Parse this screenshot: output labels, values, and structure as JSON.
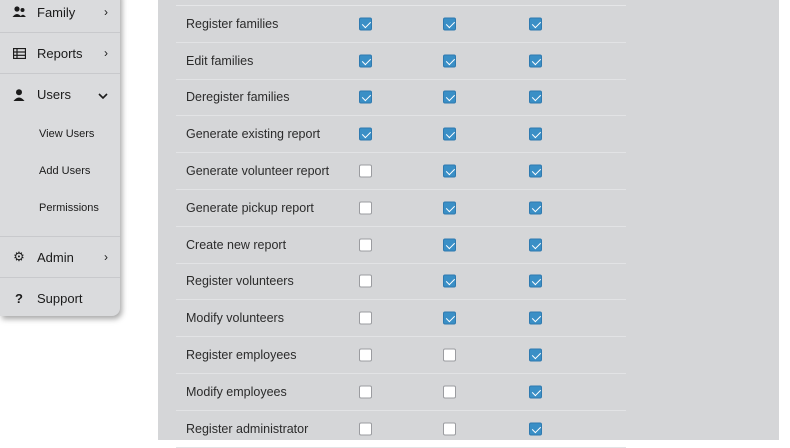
{
  "sidebar": {
    "items": [
      {
        "label": "Family",
        "icon": "family-icon",
        "chevron": "›"
      },
      {
        "label": "Reports",
        "icon": "reports-icon",
        "chevron": "›"
      },
      {
        "label": "Users",
        "icon": "user-icon",
        "chevron": "⌄",
        "expanded": true,
        "children": [
          {
            "label": "View Users"
          },
          {
            "label": "Add Users"
          },
          {
            "label": "Permissions"
          }
        ]
      },
      {
        "label": "Admin",
        "icon": "gear-icon",
        "chevron": "›"
      },
      {
        "label": "Support",
        "icon": "question-icon",
        "chevron": ""
      }
    ]
  },
  "permissions": {
    "rows": [
      {
        "label": "Register families",
        "checks": [
          true,
          true,
          true
        ]
      },
      {
        "label": "Edit families",
        "checks": [
          true,
          true,
          true
        ]
      },
      {
        "label": "Deregister families",
        "checks": [
          true,
          true,
          true
        ]
      },
      {
        "label": "Generate existing report",
        "checks": [
          true,
          true,
          true
        ]
      },
      {
        "label": "Generate volunteer report",
        "checks": [
          false,
          true,
          true
        ]
      },
      {
        "label": "Generate pickup report",
        "checks": [
          false,
          true,
          true
        ]
      },
      {
        "label": "Create new report",
        "checks": [
          false,
          true,
          true
        ]
      },
      {
        "label": "Register volunteers",
        "checks": [
          false,
          true,
          true
        ]
      },
      {
        "label": "Modify volunteers",
        "checks": [
          false,
          true,
          true
        ]
      },
      {
        "label": "Register employees",
        "checks": [
          false,
          false,
          true
        ]
      },
      {
        "label": "Modify employees",
        "checks": [
          false,
          false,
          true
        ]
      },
      {
        "label": "Register administrator",
        "checks": [
          false,
          false,
          true
        ]
      }
    ]
  },
  "colors": {
    "accent": "#3a8fc6",
    "panel": "#d5d6d8",
    "sidebar": "#dadbdd"
  }
}
